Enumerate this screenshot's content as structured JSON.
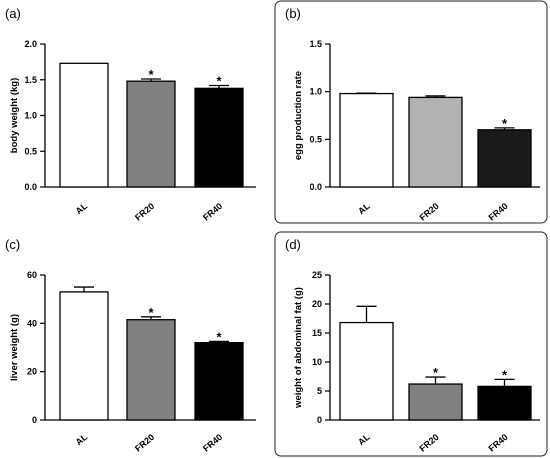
{
  "chart_data": [
    {
      "type": "bar",
      "panel_label": "(a)",
      "categories": [
        "AL",
        "FR20",
        "FR40"
      ],
      "values": [
        1.73,
        1.48,
        1.38
      ],
      "errors": [
        0.0,
        0.03,
        0.04
      ],
      "significance": [
        "",
        "*",
        "*"
      ],
      "bar_colors": [
        "#ffffff",
        "#808080",
        "#000000"
      ],
      "ylabel": "body weight (kg)",
      "ylim": [
        0,
        2.0
      ],
      "yticks": [
        0,
        0.5,
        1.0,
        1.5,
        2.0
      ],
      "ytick_labels": [
        "0.0",
        "0.5",
        "1.0",
        "1.5",
        "2.0"
      ],
      "boxed": false
    },
    {
      "type": "bar",
      "panel_label": "(b)",
      "categories": [
        "AL",
        "FR20",
        "FR40"
      ],
      "values": [
        0.98,
        0.94,
        0.6
      ],
      "errors": [
        0.005,
        0.015,
        0.02
      ],
      "significance": [
        "",
        "",
        "*"
      ],
      "bar_colors": [
        "#ffffff",
        "#b2b2b2",
        "#1a1a1a"
      ],
      "ylabel": "egg production rate",
      "ylim": [
        0,
        1.5
      ],
      "yticks": [
        0,
        0.5,
        1.0,
        1.5
      ],
      "ytick_labels": [
        "0.0",
        "0.5",
        "1.0",
        "1.5"
      ],
      "boxed": true
    },
    {
      "type": "bar",
      "panel_label": "(c)",
      "categories": [
        "AL",
        "FR20",
        "FR40"
      ],
      "values": [
        53.0,
        41.5,
        32.0
      ],
      "errors": [
        2.0,
        1.2,
        0.5
      ],
      "significance": [
        "",
        "*",
        "*"
      ],
      "bar_colors": [
        "#ffffff",
        "#808080",
        "#000000"
      ],
      "ylabel": "liver weight (g)",
      "ylim": [
        0,
        60
      ],
      "yticks": [
        0,
        20,
        40,
        60
      ],
      "ytick_labels": [
        "0",
        "20",
        "40",
        "60"
      ],
      "boxed": false
    },
    {
      "type": "bar",
      "panel_label": "(d)",
      "categories": [
        "AL",
        "FR20",
        "FR40"
      ],
      "values": [
        16.8,
        6.2,
        5.8
      ],
      "errors": [
        2.8,
        1.2,
        1.2
      ],
      "significance": [
        "",
        "*",
        "*"
      ],
      "bar_colors": [
        "#ffffff",
        "#808080",
        "#000000"
      ],
      "ylabel": "weight of abdominal fat (g)",
      "ylim": [
        0,
        25
      ],
      "yticks": [
        0,
        5,
        10,
        15,
        20,
        25
      ],
      "ytick_labels": [
        "0",
        "5",
        "10",
        "15",
        "20",
        "25"
      ],
      "boxed": true
    }
  ]
}
